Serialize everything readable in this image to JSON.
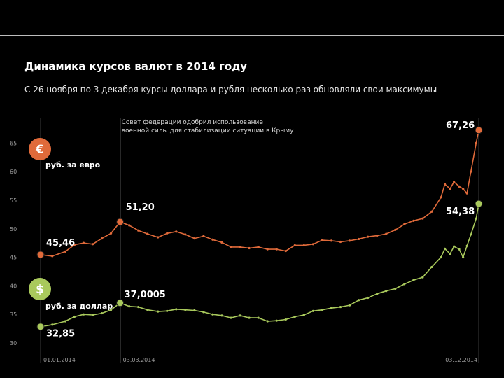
{
  "header": {
    "title": "Динамика курсов валют в 2014 году",
    "subtitle": "С 26 ноября по 3 декабря курсы доллара и рубля несколько раз обновляли свои максимумы"
  },
  "colors": {
    "background": "#000000",
    "euro": "#e06a3a",
    "dollar": "#a9c95c",
    "grid": "#3a3a3a",
    "marker_line": "#8a8a8a"
  },
  "icons": {
    "euro": "euro-sign-icon",
    "dollar": "dollar-sign-icon"
  },
  "chart_data": {
    "type": "line",
    "x_axis_labels": [
      "01.01.2014",
      "03.03.2014",
      "03.12.2014"
    ],
    "x_axis_label_positions": [
      "2014-01-01",
      "2014-03-03",
      "2014-12-03"
    ],
    "x_range": [
      "2014-01-01",
      "2014-12-03"
    ],
    "ylim": [
      30,
      67
    ],
    "yticks": [
      30,
      35,
      40,
      45,
      50,
      55,
      60,
      65
    ],
    "grid": "vertical",
    "annotation": {
      "x": "2014-03-03",
      "lines": [
        "Совет федерации одобрил использование",
        "военной силы для стабилизации ситуации в Крыму"
      ]
    },
    "series": [
      {
        "name": "руб. за евро",
        "symbol": "€",
        "color": "#e06a3a",
        "points": [
          [
            "2014-01-01",
            45.46
          ],
          [
            "2014-01-10",
            45.2
          ],
          [
            "2014-01-20",
            46.0
          ],
          [
            "2014-01-27",
            47.2
          ],
          [
            "2014-02-03",
            47.5
          ],
          [
            "2014-02-10",
            47.3
          ],
          [
            "2014-02-17",
            48.3
          ],
          [
            "2014-02-24",
            49.2
          ],
          [
            "2014-03-03",
            51.2
          ],
          [
            "2014-03-10",
            50.6
          ],
          [
            "2014-03-17",
            49.7
          ],
          [
            "2014-03-24",
            49.1
          ],
          [
            "2014-04-01",
            48.5
          ],
          [
            "2014-04-08",
            49.2
          ],
          [
            "2014-04-15",
            49.5
          ],
          [
            "2014-04-22",
            49.0
          ],
          [
            "2014-04-29",
            48.3
          ],
          [
            "2014-05-06",
            48.7
          ],
          [
            "2014-05-13",
            48.1
          ],
          [
            "2014-05-20",
            47.6
          ],
          [
            "2014-05-27",
            46.8
          ],
          [
            "2014-06-03",
            46.8
          ],
          [
            "2014-06-10",
            46.6
          ],
          [
            "2014-06-17",
            46.8
          ],
          [
            "2014-06-24",
            46.4
          ],
          [
            "2014-07-01",
            46.4
          ],
          [
            "2014-07-08",
            46.1
          ],
          [
            "2014-07-15",
            47.1
          ],
          [
            "2014-07-22",
            47.1
          ],
          [
            "2014-07-29",
            47.3
          ],
          [
            "2014-08-05",
            48.0
          ],
          [
            "2014-08-12",
            47.9
          ],
          [
            "2014-08-19",
            47.7
          ],
          [
            "2014-08-26",
            47.9
          ],
          [
            "2014-09-02",
            48.2
          ],
          [
            "2014-09-09",
            48.6
          ],
          [
            "2014-09-16",
            48.8
          ],
          [
            "2014-09-23",
            49.1
          ],
          [
            "2014-09-30",
            49.8
          ],
          [
            "2014-10-07",
            50.8
          ],
          [
            "2014-10-14",
            51.4
          ],
          [
            "2014-10-21",
            51.8
          ],
          [
            "2014-10-28",
            53.0
          ],
          [
            "2014-11-04",
            55.5
          ],
          [
            "2014-11-07",
            57.8
          ],
          [
            "2014-11-11",
            57.0
          ],
          [
            "2014-11-14",
            58.2
          ],
          [
            "2014-11-18",
            57.4
          ],
          [
            "2014-11-21",
            57.0
          ],
          [
            "2014-11-24",
            56.2
          ],
          [
            "2014-11-27",
            60.0
          ],
          [
            "2014-12-01",
            65.0
          ],
          [
            "2014-12-03",
            67.26
          ]
        ],
        "labeled_points": [
          {
            "x": "2014-01-01",
            "y": 45.46,
            "label": "45,46"
          },
          {
            "x": "2014-03-03",
            "y": 51.2,
            "label": "51,20"
          },
          {
            "x": "2014-12-03",
            "y": 67.26,
            "label": "67,26"
          }
        ]
      },
      {
        "name": "руб. за доллар",
        "symbol": "$",
        "color": "#a9c95c",
        "points": [
          [
            "2014-01-01",
            32.85
          ],
          [
            "2014-01-10",
            33.2
          ],
          [
            "2014-01-20",
            33.8
          ],
          [
            "2014-01-27",
            34.6
          ],
          [
            "2014-02-03",
            35.0
          ],
          [
            "2014-02-10",
            34.9
          ],
          [
            "2014-02-17",
            35.2
          ],
          [
            "2014-02-24",
            35.8
          ],
          [
            "2014-03-03",
            37.0005
          ],
          [
            "2014-03-10",
            36.4
          ],
          [
            "2014-03-17",
            36.3
          ],
          [
            "2014-03-24",
            35.8
          ],
          [
            "2014-04-01",
            35.5
          ],
          [
            "2014-04-08",
            35.6
          ],
          [
            "2014-04-15",
            35.9
          ],
          [
            "2014-04-22",
            35.8
          ],
          [
            "2014-04-29",
            35.7
          ],
          [
            "2014-05-06",
            35.4
          ],
          [
            "2014-05-13",
            35.0
          ],
          [
            "2014-05-20",
            34.8
          ],
          [
            "2014-05-27",
            34.4
          ],
          [
            "2014-06-03",
            34.8
          ],
          [
            "2014-06-10",
            34.4
          ],
          [
            "2014-06-17",
            34.4
          ],
          [
            "2014-06-24",
            33.8
          ],
          [
            "2014-07-01",
            33.9
          ],
          [
            "2014-07-08",
            34.1
          ],
          [
            "2014-07-15",
            34.6
          ],
          [
            "2014-07-22",
            34.9
          ],
          [
            "2014-07-29",
            35.6
          ],
          [
            "2014-08-05",
            35.8
          ],
          [
            "2014-08-12",
            36.1
          ],
          [
            "2014-08-19",
            36.3
          ],
          [
            "2014-08-26",
            36.6
          ],
          [
            "2014-09-02",
            37.5
          ],
          [
            "2014-09-09",
            37.9
          ],
          [
            "2014-09-16",
            38.6
          ],
          [
            "2014-09-23",
            39.1
          ],
          [
            "2014-09-30",
            39.5
          ],
          [
            "2014-10-07",
            40.3
          ],
          [
            "2014-10-14",
            41.0
          ],
          [
            "2014-10-21",
            41.5
          ],
          [
            "2014-10-28",
            43.3
          ],
          [
            "2014-11-04",
            45.0
          ],
          [
            "2014-11-07",
            46.5
          ],
          [
            "2014-11-11",
            45.6
          ],
          [
            "2014-11-14",
            46.9
          ],
          [
            "2014-11-18",
            46.4
          ],
          [
            "2014-11-21",
            45.0
          ],
          [
            "2014-11-24",
            47.0
          ],
          [
            "2014-11-27",
            49.0
          ],
          [
            "2014-12-01",
            51.8
          ],
          [
            "2014-12-03",
            54.38
          ]
        ],
        "labeled_points": [
          {
            "x": "2014-01-01",
            "y": 32.85,
            "label": "32,85"
          },
          {
            "x": "2014-03-03",
            "y": 37.0005,
            "label": "37,0005"
          },
          {
            "x": "2014-12-03",
            "y": 54.38,
            "label": "54,38"
          }
        ]
      }
    ]
  }
}
